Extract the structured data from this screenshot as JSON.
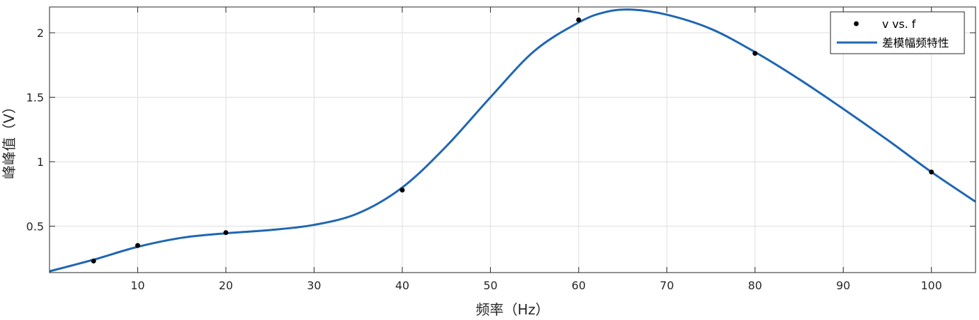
{
  "chart_data": {
    "type": "line",
    "xlabel": "频率（Hz）",
    "ylabel": "峰峰值（V）",
    "xlim": [
      0,
      105
    ],
    "ylim": [
      0.14,
      2.2
    ],
    "xticks": [
      10,
      20,
      30,
      40,
      50,
      60,
      70,
      80,
      90,
      100
    ],
    "yticks": [
      0.5,
      1,
      1.5,
      2
    ],
    "xtick_labels": [
      "10",
      "20",
      "30",
      "40",
      "50",
      "60",
      "70",
      "80",
      "90",
      "100"
    ],
    "ytick_labels": [
      "0.5",
      "1",
      "1.5",
      "2"
    ],
    "grid": true,
    "legend_position": "top-right",
    "series": [
      {
        "name": "v vs. f",
        "kind": "scatter",
        "color": "#000000",
        "x": [
          5,
          10,
          20,
          40,
          60,
          80,
          100
        ],
        "y": [
          0.23,
          0.35,
          0.45,
          0.78,
          2.1,
          1.84,
          0.92
        ]
      },
      {
        "name": "差模幅频特性",
        "kind": "line",
        "color": "#1f66b3",
        "x": [
          0,
          5,
          10,
          15,
          20,
          25,
          30,
          35,
          40,
          45,
          50,
          55,
          60,
          63,
          66,
          70,
          75,
          80,
          85,
          90,
          95,
          100,
          105
        ],
        "y": [
          0.15,
          0.24,
          0.34,
          0.41,
          0.445,
          0.47,
          0.51,
          0.6,
          0.8,
          1.12,
          1.5,
          1.86,
          2.08,
          2.16,
          2.18,
          2.14,
          2.03,
          1.85,
          1.64,
          1.41,
          1.17,
          0.92,
          0.69
        ]
      }
    ]
  }
}
